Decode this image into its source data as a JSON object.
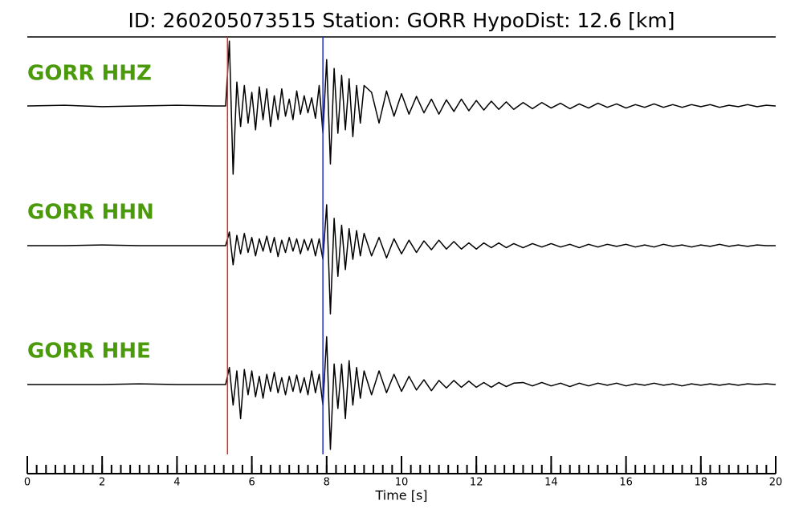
{
  "chart_data": {
    "type": "seismogram",
    "title": "ID: 260205073515   Station: GORR   HypoDist:    12.6 [km]",
    "xlabel": "Time [s]",
    "xlim": [
      0,
      20
    ],
    "xticks": [
      0,
      2,
      4,
      6,
      8,
      10,
      12,
      14,
      16,
      18,
      20
    ],
    "xminorticks": [
      0,
      0.25,
      0.5,
      0.75,
      1,
      1.25,
      1.5,
      1.75,
      2,
      2.25,
      2.5,
      2.75,
      3,
      3.25,
      3.5,
      3.75,
      4,
      4.25,
      4.5,
      4.75,
      5,
      5.25,
      5.5,
      5.75,
      6,
      6.25,
      6.5,
      6.75,
      7,
      7.25,
      7.5,
      7.75,
      8,
      8.25,
      8.5,
      8.75,
      9,
      9.25,
      9.5,
      9.75,
      10,
      10.25,
      10.5,
      10.75,
      11,
      11.25,
      11.5,
      11.75,
      12,
      12.25,
      12.5,
      12.75,
      13,
      13.25,
      13.5,
      13.75,
      14,
      14.25,
      14.5,
      14.75,
      15,
      15.25,
      15.5,
      15.75,
      16,
      16.25,
      16.5,
      16.75,
      17,
      17.25,
      17.5,
      17.75,
      18,
      18.25,
      18.5,
      18.75,
      19,
      19.25,
      19.5,
      19.75,
      20
    ],
    "picks": [
      {
        "x": 5.35,
        "color": "#e8261c"
      },
      {
        "x": 7.9,
        "color": "#1f2fd0"
      }
    ],
    "label_color": "#4a9a0c",
    "x": [
      0,
      1,
      2,
      3,
      4,
      5,
      5.3,
      5.4,
      5.5,
      5.6,
      5.7,
      5.8,
      5.9,
      6.0,
      6.1,
      6.2,
      6.3,
      6.4,
      6.5,
      6.6,
      6.7,
      6.8,
      6.9,
      7.0,
      7.1,
      7.2,
      7.3,
      7.4,
      7.5,
      7.6,
      7.7,
      7.8,
      7.9,
      8.0,
      8.1,
      8.2,
      8.3,
      8.4,
      8.5,
      8.6,
      8.7,
      8.8,
      8.9,
      9.0,
      9.2,
      9.4,
      9.6,
      9.8,
      10.0,
      10.2,
      10.4,
      10.6,
      10.8,
      11.0,
      11.2,
      11.4,
      11.6,
      11.8,
      12.0,
      12.2,
      12.4,
      12.6,
      12.8,
      13.0,
      13.25,
      13.5,
      13.75,
      14,
      14.25,
      14.5,
      14.75,
      15,
      15.25,
      15.5,
      15.75,
      16,
      16.25,
      16.5,
      16.75,
      17,
      17.25,
      17.5,
      17.75,
      18,
      18.25,
      18.5,
      18.75,
      19,
      19.25,
      19.5,
      19.75,
      20
    ],
    "series": [
      {
        "name": "GORR HHZ",
        "color": "#000000",
        "values": [
          0,
          0.01,
          -0.01,
          0,
          0.01,
          0,
          0,
          0.95,
          -1.0,
          0.35,
          -0.3,
          0.3,
          -0.25,
          0.2,
          -0.35,
          0.28,
          -0.2,
          0.25,
          -0.3,
          0.15,
          -0.2,
          0.25,
          -0.15,
          0.1,
          -0.2,
          0.22,
          -0.12,
          0.15,
          -0.1,
          0.12,
          -0.18,
          0.3,
          -0.4,
          0.68,
          -0.85,
          0.55,
          -0.4,
          0.45,
          -0.35,
          0.4,
          -0.45,
          0.3,
          -0.25,
          0.3,
          0.2,
          -0.25,
          0.22,
          -0.15,
          0.18,
          -0.12,
          0.14,
          -0.1,
          0.1,
          -0.12,
          0.09,
          -0.08,
          0.1,
          -0.07,
          0.08,
          -0.06,
          0.07,
          -0.05,
          0.06,
          -0.05,
          0.05,
          -0.04,
          0.05,
          -0.03,
          0.04,
          -0.04,
          0.03,
          -0.03,
          0.04,
          -0.02,
          0.03,
          -0.03,
          0.02,
          -0.02,
          0.03,
          -0.02,
          0.02,
          -0.02,
          0.02,
          -0.01,
          0.02,
          -0.02,
          0.01,
          -0.01,
          0.02,
          -0.01,
          0.01,
          0
        ]
      },
      {
        "name": "GORR HHN",
        "color": "#000000",
        "values": [
          0,
          0,
          0.01,
          0,
          0,
          0,
          0,
          0.2,
          -0.28,
          0.15,
          -0.12,
          0.18,
          -0.1,
          0.12,
          -0.15,
          0.1,
          -0.08,
          0.14,
          -0.1,
          0.12,
          -0.16,
          0.08,
          -0.1,
          0.12,
          -0.08,
          0.1,
          -0.12,
          0.09,
          -0.07,
          0.1,
          -0.15,
          0.1,
          -0.2,
          0.6,
          -1.0,
          0.4,
          -0.45,
          0.3,
          -0.35,
          0.25,
          -0.2,
          0.22,
          -0.15,
          0.18,
          -0.15,
          0.12,
          -0.18,
          0.1,
          -0.12,
          0.08,
          -0.1,
          0.07,
          -0.06,
          0.08,
          -0.05,
          0.06,
          -0.05,
          0.04,
          -0.05,
          0.04,
          -0.03,
          0.04,
          -0.03,
          0.03,
          -0.03,
          0.03,
          -0.02,
          0.03,
          -0.02,
          0.02,
          -0.03,
          0.02,
          -0.02,
          0.02,
          -0.01,
          0.02,
          -0.02,
          0.01,
          -0.02,
          0.02,
          -0.01,
          0.01,
          -0.02,
          0.01,
          -0.01,
          0.02,
          -0.01,
          0.01,
          -0.01,
          0.01,
          0,
          0
        ]
      },
      {
        "name": "GORR HHE",
        "color": "#000000",
        "values": [
          0,
          0,
          0,
          0.01,
          0,
          0,
          0,
          0.25,
          -0.3,
          0.2,
          -0.5,
          0.22,
          -0.15,
          0.2,
          -0.18,
          0.12,
          -0.2,
          0.15,
          -0.1,
          0.18,
          -0.12,
          0.1,
          -0.15,
          0.12,
          -0.1,
          0.14,
          -0.12,
          0.1,
          -0.15,
          0.2,
          -0.12,
          0.15,
          -0.3,
          0.7,
          -0.95,
          0.3,
          -0.35,
          0.3,
          -0.5,
          0.35,
          -0.3,
          0.25,
          -0.2,
          0.2,
          -0.15,
          0.2,
          -0.12,
          0.15,
          -0.1,
          0.12,
          -0.08,
          0.07,
          -0.09,
          0.06,
          -0.05,
          0.06,
          -0.04,
          0.05,
          -0.04,
          0.03,
          -0.04,
          0.03,
          -0.03,
          0.02,
          0.03,
          -0.02,
          0.03,
          -0.02,
          0.02,
          -0.03,
          0.02,
          -0.02,
          0.02,
          -0.01,
          0.02,
          -0.02,
          0.01,
          -0.01,
          0.02,
          -0.01,
          0.01,
          -0.02,
          0.01,
          -0.01,
          0.01,
          -0.01,
          0.01,
          -0.01,
          0.01,
          0,
          0.01,
          0
        ]
      }
    ]
  }
}
